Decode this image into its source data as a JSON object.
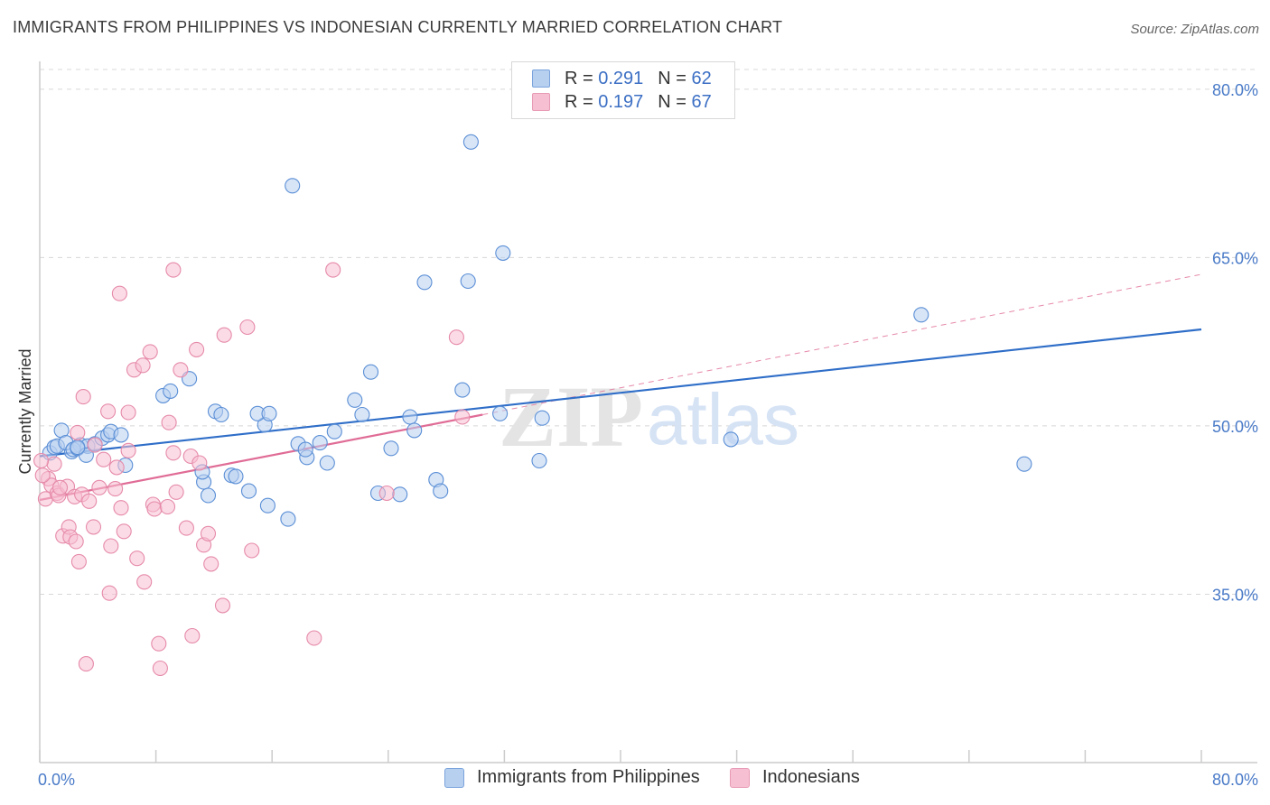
{
  "title": "IMMIGRANTS FROM PHILIPPINES VS INDONESIAN CURRENTLY MARRIED CORRELATION CHART",
  "source": "Source: ZipAtlas.com",
  "watermark": {
    "zip": "ZIP",
    "atlas": "atlas"
  },
  "colors": {
    "blue_fill": "#b8d0f0",
    "blue_stroke": "#5b8fd6",
    "blue_line": "#2f6ec8",
    "pink_fill": "#f7c0d2",
    "pink_stroke": "#e68aa9",
    "pink_line": "#e06c96",
    "grid": "#d8d8d8",
    "tick_text": "#4a7bc8"
  },
  "legend": {
    "rows": [
      {
        "r_label": "R =",
        "r_value": "0.291",
        "n_label": "N =",
        "n_value": "62",
        "color": "#b8d0f0",
        "border": "#7aa3dc"
      },
      {
        "r_label": "R =",
        "r_value": "0.197",
        "n_label": "N =",
        "n_value": "67",
        "color": "#f7c0d2",
        "border": "#e79ab5"
      }
    ]
  },
  "bottom_legend": [
    {
      "label": "Immigrants from Philippines",
      "color": "#b8d0f0",
      "border": "#7aa3dc"
    },
    {
      "label": "Indonesians",
      "color": "#f7c0d2",
      "border": "#e79ab5"
    }
  ],
  "chart_data": {
    "type": "scatter",
    "title": "IMMIGRANTS FROM PHILIPPINES VS INDONESIAN CURRENTLY MARRIED CORRELATION CHART",
    "xlabel": "",
    "ylabel": "Currently Married",
    "xlim": [
      0,
      80
    ],
    "ylim": [
      20,
      82
    ],
    "x_tick_labels": [
      "0.0%",
      "80.0%"
    ],
    "y_ticks": [
      35,
      50,
      65,
      80
    ],
    "y_tick_labels": [
      "35.0%",
      "50.0%",
      "65.0%",
      "80.0%"
    ],
    "grid": true,
    "series": [
      {
        "name": "Immigrants from Philippines",
        "r": 0.291,
        "n": 62,
        "trend": {
          "x": [
            0,
            80
          ],
          "y": [
            47.3,
            58.6
          ]
        },
        "points": [
          [
            0.7,
            47.6
          ],
          [
            1.0,
            48.1
          ],
          [
            1.5,
            49.6
          ],
          [
            2.2,
            47.7
          ],
          [
            2.8,
            48.3
          ],
          [
            3.3,
            48.2
          ],
          [
            1.2,
            48.2
          ],
          [
            1.8,
            48.5
          ],
          [
            2.3,
            47.9
          ],
          [
            2.6,
            48.0
          ],
          [
            3.2,
            47.4
          ],
          [
            3.8,
            48.4
          ],
          [
            4.3,
            48.9
          ],
          [
            4.7,
            49.2
          ],
          [
            4.9,
            49.5
          ],
          [
            5.6,
            49.2
          ],
          [
            5.9,
            46.5
          ],
          [
            8.5,
            52.7
          ],
          [
            9.0,
            53.1
          ],
          [
            10.3,
            54.2
          ],
          [
            11.3,
            45.0
          ],
          [
            11.6,
            43.8
          ],
          [
            11.2,
            45.9
          ],
          [
            12.1,
            51.3
          ],
          [
            12.5,
            51.0
          ],
          [
            13.2,
            45.6
          ],
          [
            13.5,
            45.5
          ],
          [
            14.4,
            44.2
          ],
          [
            15.5,
            50.1
          ],
          [
            15.7,
            42.9
          ],
          [
            15.0,
            51.1
          ],
          [
            15.8,
            51.1
          ],
          [
            17.1,
            41.7
          ],
          [
            17.8,
            48.4
          ],
          [
            18.4,
            47.2
          ],
          [
            18.3,
            47.9
          ],
          [
            19.3,
            48.5
          ],
          [
            19.8,
            46.7
          ],
          [
            20.3,
            49.5
          ],
          [
            17.4,
            71.4
          ],
          [
            21.7,
            52.3
          ],
          [
            22.2,
            51.0
          ],
          [
            22.8,
            54.8
          ],
          [
            23.3,
            44.0
          ],
          [
            24.2,
            48.0
          ],
          [
            24.8,
            43.9
          ],
          [
            25.5,
            50.8
          ],
          [
            25.8,
            49.6
          ],
          [
            26.5,
            62.8
          ],
          [
            27.3,
            45.2
          ],
          [
            27.6,
            44.2
          ],
          [
            29.1,
            53.2
          ],
          [
            29.5,
            62.9
          ],
          [
            29.7,
            75.3
          ],
          [
            31.7,
            51.1
          ],
          [
            31.9,
            65.4
          ],
          [
            34.4,
            46.9
          ],
          [
            34.6,
            50.7
          ],
          [
            47.6,
            48.8
          ],
          [
            60.7,
            59.9
          ],
          [
            67.8,
            46.6
          ],
          [
            2.6,
            48.1
          ]
        ]
      },
      {
        "name": "Indonesians",
        "r": 0.197,
        "n": 67,
        "trend": {
          "x": [
            0,
            30.5
          ],
          "y": [
            43.4,
            51.0
          ]
        },
        "dashed_extension": {
          "x": [
            30.5,
            80
          ],
          "y": [
            51.0,
            63.5
          ]
        },
        "points": [
          [
            0.4,
            43.5
          ],
          [
            0.6,
            45.3
          ],
          [
            0.8,
            44.7
          ],
          [
            1.0,
            46.6
          ],
          [
            1.2,
            44.0
          ],
          [
            1.3,
            43.8
          ],
          [
            1.6,
            40.2
          ],
          [
            1.9,
            44.6
          ],
          [
            2.0,
            41.0
          ],
          [
            2.1,
            40.1
          ],
          [
            2.4,
            43.7
          ],
          [
            2.5,
            39.7
          ],
          [
            2.6,
            49.4
          ],
          [
            2.7,
            37.9
          ],
          [
            2.9,
            43.9
          ],
          [
            3.0,
            52.6
          ],
          [
            3.2,
            28.8
          ],
          [
            3.4,
            43.3
          ],
          [
            3.7,
            41.0
          ],
          [
            3.8,
            48.3
          ],
          [
            4.1,
            44.5
          ],
          [
            4.4,
            47.0
          ],
          [
            4.7,
            51.3
          ],
          [
            4.8,
            35.1
          ],
          [
            4.9,
            39.3
          ],
          [
            5.2,
            44.4
          ],
          [
            5.3,
            46.3
          ],
          [
            5.5,
            61.8
          ],
          [
            5.6,
            42.7
          ],
          [
            5.8,
            40.6
          ],
          [
            6.1,
            51.2
          ],
          [
            6.1,
            47.8
          ],
          [
            6.5,
            55.0
          ],
          [
            6.7,
            38.2
          ],
          [
            7.1,
            55.4
          ],
          [
            7.2,
            36.1
          ],
          [
            7.6,
            56.6
          ],
          [
            7.8,
            43.0
          ],
          [
            7.9,
            42.6
          ],
          [
            8.2,
            30.6
          ],
          [
            8.3,
            28.4
          ],
          [
            8.8,
            42.8
          ],
          [
            8.9,
            50.3
          ],
          [
            9.2,
            63.9
          ],
          [
            9.2,
            47.6
          ],
          [
            9.4,
            44.1
          ],
          [
            9.7,
            55.0
          ],
          [
            10.1,
            40.9
          ],
          [
            10.4,
            47.3
          ],
          [
            10.5,
            31.3
          ],
          [
            10.8,
            56.8
          ],
          [
            11.0,
            46.7
          ],
          [
            11.3,
            39.4
          ],
          [
            11.6,
            40.4
          ],
          [
            11.8,
            37.7
          ],
          [
            12.6,
            34.0
          ],
          [
            12.7,
            58.1
          ],
          [
            14.3,
            58.8
          ],
          [
            14.6,
            38.9
          ],
          [
            18.9,
            31.1
          ],
          [
            20.2,
            63.9
          ],
          [
            23.9,
            44.0
          ],
          [
            28.7,
            57.9
          ],
          [
            29.1,
            50.8
          ],
          [
            0.2,
            45.6
          ],
          [
            0.1,
            46.9
          ],
          [
            1.4,
            44.5
          ]
        ]
      }
    ]
  }
}
